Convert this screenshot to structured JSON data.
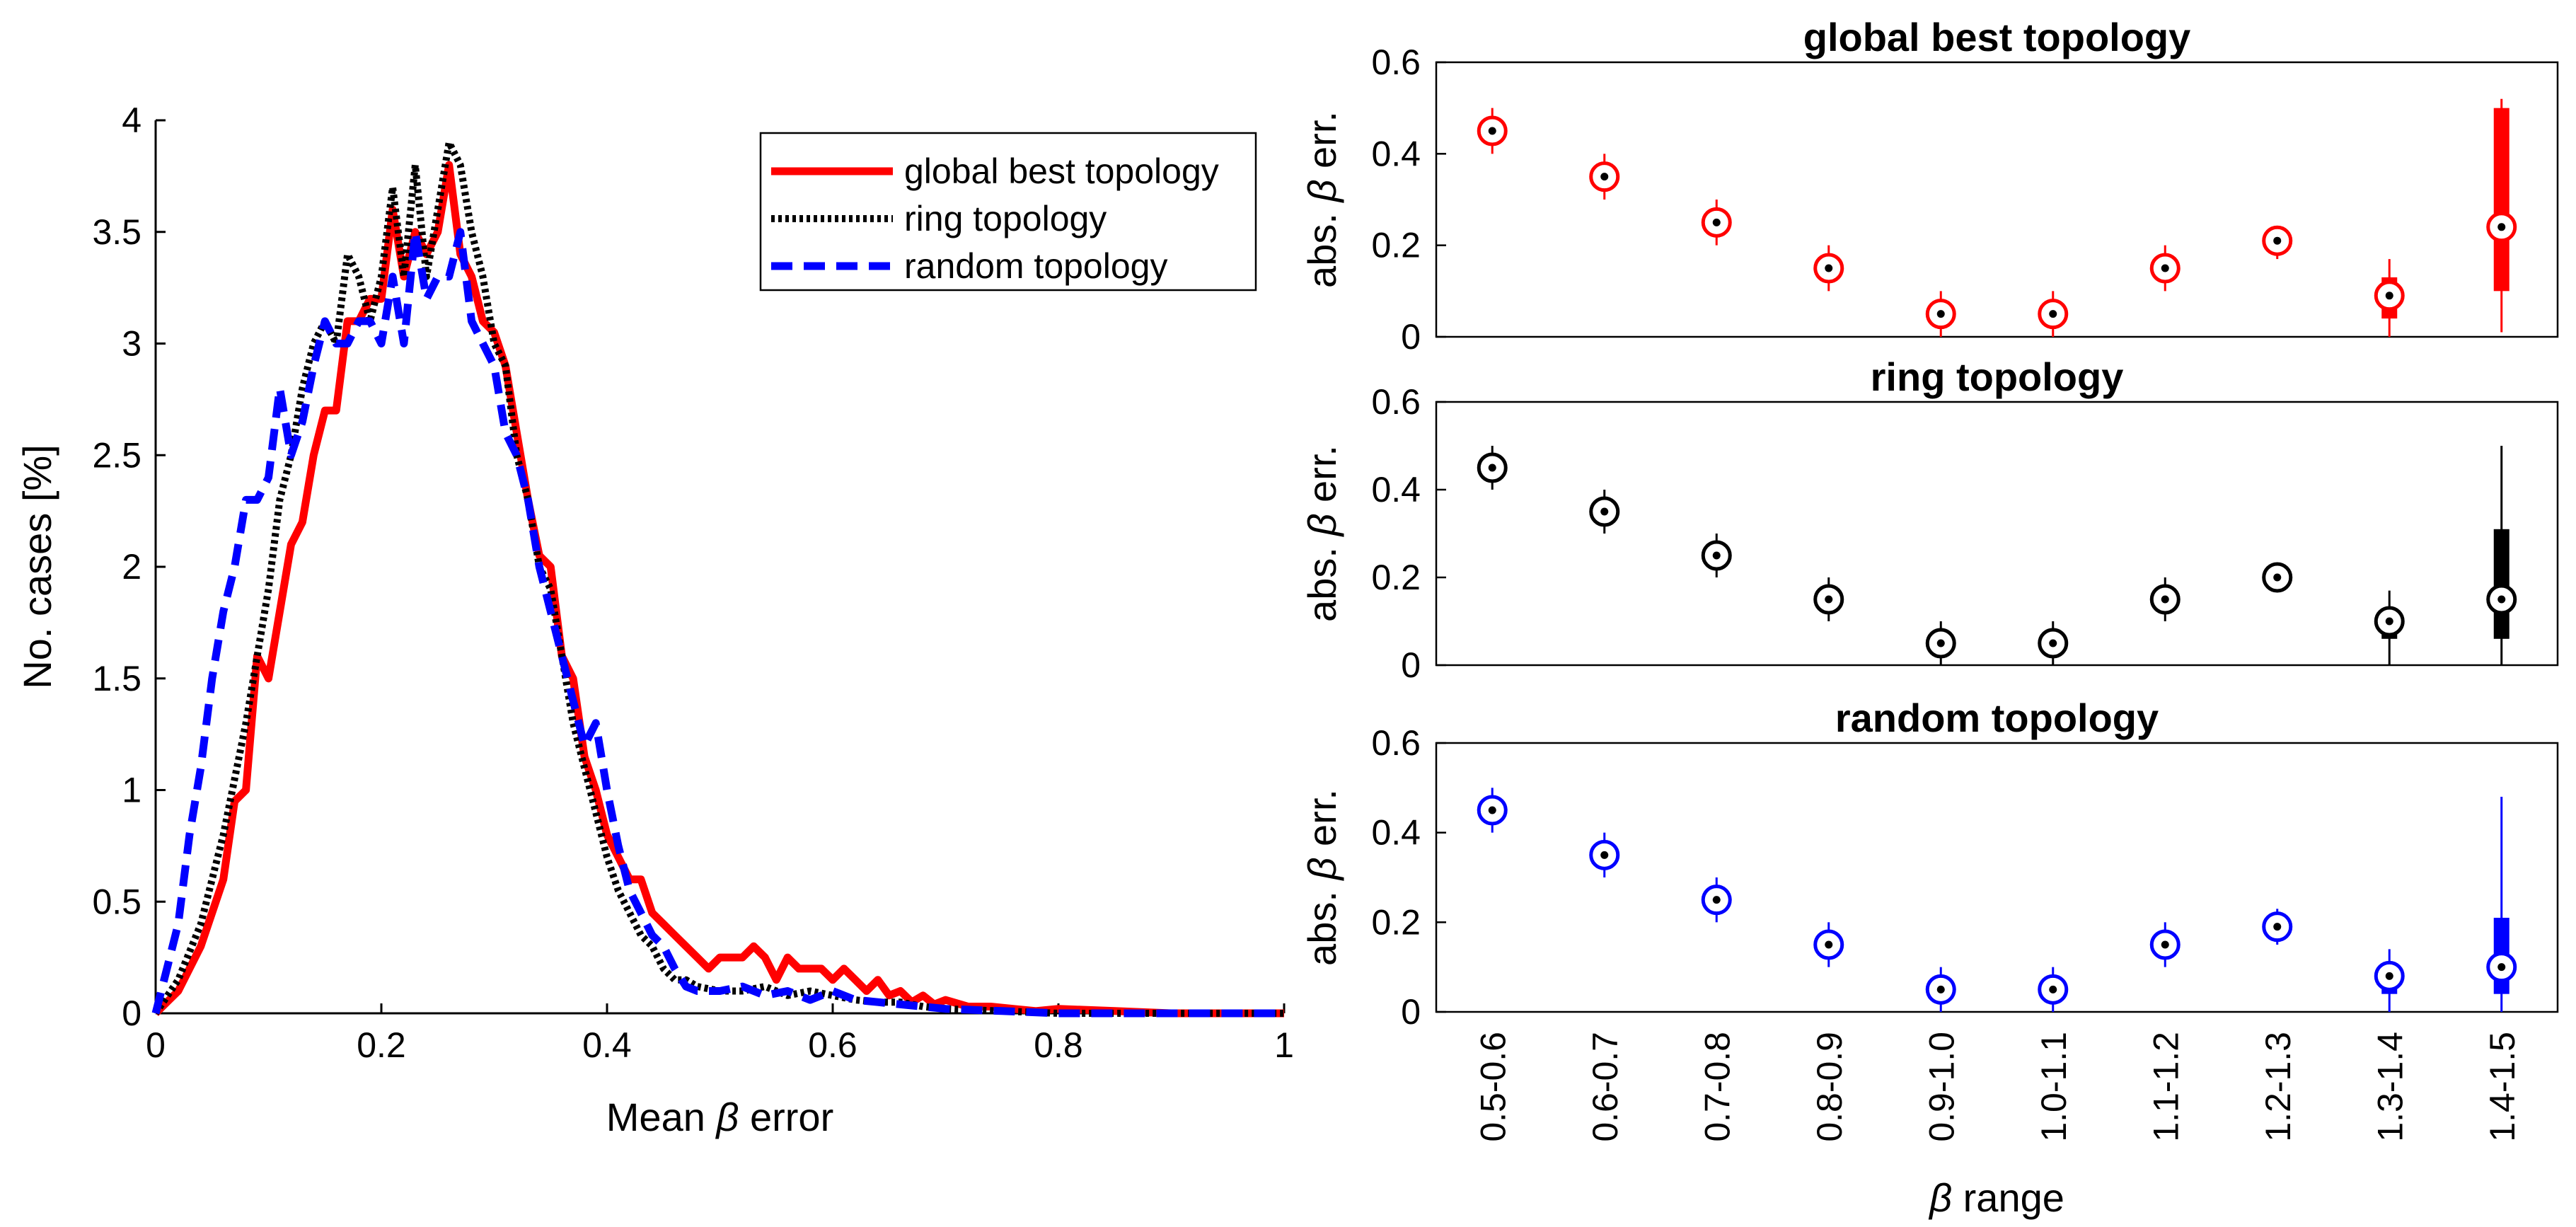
{
  "chart_data": [
    {
      "type": "line",
      "xlabel": "Mean β error",
      "ylabel": "No. cases [%]",
      "xlim": [
        0,
        1
      ],
      "ylim": [
        0,
        4
      ],
      "xticks": [
        0,
        0.2,
        0.4,
        0.6,
        0.8,
        1
      ],
      "xtick_labels": [
        "0",
        "0.2",
        "0.4",
        "0.6",
        "0.8",
        "1"
      ],
      "yticks": [
        0,
        0.5,
        1,
        1.5,
        2,
        2.5,
        3,
        3.5,
        4
      ],
      "ytick_labels": [
        "0",
        "0.5",
        "1",
        "1.5",
        "2",
        "2.5",
        "3",
        "3.5",
        "4"
      ],
      "legend_position": "top-right",
      "series": [
        {
          "name": "global best topology",
          "color": "#ff0000",
          "style": "solid",
          "x": [
            0,
            0.02,
            0.04,
            0.06,
            0.07,
            0.08,
            0.09,
            0.1,
            0.12,
            0.13,
            0.14,
            0.15,
            0.16,
            0.17,
            0.18,
            0.19,
            0.2,
            0.21,
            0.22,
            0.23,
            0.24,
            0.25,
            0.26,
            0.27,
            0.28,
            0.29,
            0.3,
            0.31,
            0.32,
            0.33,
            0.34,
            0.35,
            0.36,
            0.37,
            0.38,
            0.39,
            0.4,
            0.41,
            0.42,
            0.43,
            0.44,
            0.45,
            0.46,
            0.47,
            0.48,
            0.49,
            0.5,
            0.51,
            0.52,
            0.53,
            0.54,
            0.55,
            0.56,
            0.57,
            0.58,
            0.59,
            0.6,
            0.61,
            0.62,
            0.63,
            0.64,
            0.65,
            0.66,
            0.67,
            0.68,
            0.69,
            0.7,
            0.72,
            0.74,
            0.76,
            0.78,
            0.8,
            0.85,
            0.9,
            1.0
          ],
          "y": [
            0,
            0.1,
            0.3,
            0.6,
            0.95,
            1.0,
            1.6,
            1.5,
            2.1,
            2.2,
            2.5,
            2.7,
            2.7,
            3.1,
            3.1,
            3.2,
            3.2,
            3.6,
            3.3,
            3.5,
            3.4,
            3.5,
            3.8,
            3.4,
            3.3,
            3.1,
            3.05,
            2.9,
            2.6,
            2.3,
            2.05,
            2.0,
            1.6,
            1.5,
            1.15,
            1.0,
            0.8,
            0.7,
            0.6,
            0.6,
            0.45,
            0.4,
            0.35,
            0.3,
            0.25,
            0.2,
            0.25,
            0.25,
            0.25,
            0.3,
            0.25,
            0.15,
            0.25,
            0.2,
            0.2,
            0.2,
            0.15,
            0.2,
            0.15,
            0.1,
            0.15,
            0.08,
            0.1,
            0.05,
            0.08,
            0.04,
            0.06,
            0.03,
            0.03,
            0.02,
            0.01,
            0.02,
            0.01,
            0,
            0
          ]
        },
        {
          "name": "ring topology",
          "color": "#000000",
          "style": "dotted",
          "x": [
            0,
            0.02,
            0.04,
            0.06,
            0.08,
            0.09,
            0.1,
            0.11,
            0.12,
            0.13,
            0.14,
            0.15,
            0.16,
            0.17,
            0.18,
            0.19,
            0.2,
            0.21,
            0.22,
            0.23,
            0.24,
            0.25,
            0.26,
            0.27,
            0.28,
            0.29,
            0.3,
            0.31,
            0.32,
            0.33,
            0.34,
            0.35,
            0.36,
            0.37,
            0.38,
            0.39,
            0.4,
            0.41,
            0.42,
            0.43,
            0.44,
            0.45,
            0.46,
            0.47,
            0.48,
            0.5,
            0.52,
            0.54,
            0.56,
            0.58,
            0.6,
            0.62,
            0.64,
            0.66,
            0.68,
            0.7,
            0.75,
            0.8,
            1.0
          ],
          "y": [
            0,
            0.15,
            0.4,
            0.8,
            1.3,
            1.6,
            1.9,
            2.3,
            2.5,
            2.8,
            3.0,
            3.1,
            3.0,
            3.4,
            3.3,
            3.1,
            3.3,
            3.7,
            3.3,
            3.8,
            3.3,
            3.6,
            3.9,
            3.8,
            3.5,
            3.3,
            3.0,
            2.9,
            2.5,
            2.3,
            2.0,
            1.9,
            1.6,
            1.3,
            1.1,
            0.9,
            0.7,
            0.55,
            0.45,
            0.35,
            0.3,
            0.2,
            0.15,
            0.15,
            0.12,
            0.1,
            0.1,
            0.12,
            0.08,
            0.1,
            0.08,
            0.06,
            0.05,
            0.05,
            0.03,
            0.02,
            0.01,
            0,
            0
          ]
        },
        {
          "name": "random topology",
          "color": "#0000ff",
          "style": "dashed",
          "x": [
            0,
            0.02,
            0.03,
            0.04,
            0.05,
            0.06,
            0.07,
            0.08,
            0.09,
            0.1,
            0.11,
            0.12,
            0.13,
            0.14,
            0.15,
            0.16,
            0.17,
            0.18,
            0.19,
            0.2,
            0.21,
            0.22,
            0.23,
            0.24,
            0.25,
            0.26,
            0.27,
            0.28,
            0.29,
            0.3,
            0.31,
            0.32,
            0.33,
            0.34,
            0.35,
            0.36,
            0.37,
            0.38,
            0.39,
            0.4,
            0.41,
            0.42,
            0.43,
            0.44,
            0.45,
            0.46,
            0.47,
            0.48,
            0.5,
            0.52,
            0.54,
            0.56,
            0.58,
            0.6,
            0.62,
            0.64,
            0.66,
            0.68,
            0.7,
            0.75,
            0.8,
            1.0
          ],
          "y": [
            0,
            0.4,
            0.8,
            1.1,
            1.5,
            1.8,
            2.0,
            2.3,
            2.3,
            2.4,
            2.8,
            2.5,
            2.65,
            2.9,
            3.1,
            3.0,
            3.0,
            3.1,
            3.1,
            3.0,
            3.3,
            3.0,
            3.5,
            3.2,
            3.3,
            3.3,
            3.5,
            3.1,
            3.0,
            2.9,
            2.6,
            2.5,
            2.3,
            2.0,
            1.8,
            1.6,
            1.4,
            1.2,
            1.3,
            1.0,
            0.75,
            0.55,
            0.45,
            0.35,
            0.3,
            0.2,
            0.12,
            0.1,
            0.1,
            0.12,
            0.08,
            0.1,
            0.06,
            0.1,
            0.06,
            0.05,
            0.04,
            0.03,
            0.02,
            0.01,
            0,
            0
          ]
        }
      ]
    },
    {
      "type": "boxplot",
      "title": "global best topology",
      "color": "#ff0000",
      "ylabel": "abs. β err.",
      "ylim": [
        0,
        0.6
      ],
      "yticks": [
        0,
        0.2,
        0.4,
        0.6
      ],
      "ytick_labels": [
        "0",
        "0.2",
        "0.4",
        "0.6"
      ],
      "categories": [
        "0.5-0.6",
        "0.6-0.7",
        "0.7-0.8",
        "0.8-0.9",
        "0.9-1.0",
        "1.0-1.1",
        "1.1-1.2",
        "1.2-1.3",
        "1.3-1.4",
        "1.4-1.5"
      ],
      "stats": [
        {
          "median": 0.45,
          "q1": 0.45,
          "q3": 0.45,
          "whisker_low": 0.4,
          "whisker_high": 0.5
        },
        {
          "median": 0.35,
          "q1": 0.35,
          "q3": 0.35,
          "whisker_low": 0.3,
          "whisker_high": 0.4
        },
        {
          "median": 0.25,
          "q1": 0.25,
          "q3": 0.25,
          "whisker_low": 0.2,
          "whisker_high": 0.3
        },
        {
          "median": 0.15,
          "q1": 0.15,
          "q3": 0.15,
          "whisker_low": 0.1,
          "whisker_high": 0.2
        },
        {
          "median": 0.05,
          "q1": 0.05,
          "q3": 0.05,
          "whisker_low": 0.0,
          "whisker_high": 0.1
        },
        {
          "median": 0.05,
          "q1": 0.05,
          "q3": 0.05,
          "whisker_low": 0.0,
          "whisker_high": 0.1
        },
        {
          "median": 0.15,
          "q1": 0.15,
          "q3": 0.15,
          "whisker_low": 0.1,
          "whisker_high": 0.2
        },
        {
          "median": 0.21,
          "q1": 0.21,
          "q3": 0.21,
          "whisker_low": 0.17,
          "whisker_high": 0.23
        },
        {
          "median": 0.09,
          "q1": 0.04,
          "q3": 0.13,
          "whisker_low": 0.0,
          "whisker_high": 0.17
        },
        {
          "median": 0.24,
          "q1": 0.1,
          "q3": 0.5,
          "whisker_low": 0.01,
          "whisker_high": 0.52
        }
      ]
    },
    {
      "type": "boxplot",
      "title": "ring topology",
      "color": "#000000",
      "ylabel": "abs. β err.",
      "ylim": [
        0,
        0.6
      ],
      "yticks": [
        0,
        0.2,
        0.4,
        0.6
      ],
      "ytick_labels": [
        "0",
        "0.2",
        "0.4",
        "0.6"
      ],
      "categories": [
        "0.5-0.6",
        "0.6-0.7",
        "0.7-0.8",
        "0.8-0.9",
        "0.9-1.0",
        "1.0-1.1",
        "1.1-1.2",
        "1.2-1.3",
        "1.3-1.4",
        "1.4-1.5"
      ],
      "stats": [
        {
          "median": 0.45,
          "q1": 0.45,
          "q3": 0.45,
          "whisker_low": 0.4,
          "whisker_high": 0.5
        },
        {
          "median": 0.35,
          "q1": 0.35,
          "q3": 0.35,
          "whisker_low": 0.3,
          "whisker_high": 0.4
        },
        {
          "median": 0.25,
          "q1": 0.25,
          "q3": 0.25,
          "whisker_low": 0.2,
          "whisker_high": 0.3
        },
        {
          "median": 0.15,
          "q1": 0.15,
          "q3": 0.15,
          "whisker_low": 0.1,
          "whisker_high": 0.2
        },
        {
          "median": 0.05,
          "q1": 0.05,
          "q3": 0.05,
          "whisker_low": 0.0,
          "whisker_high": 0.1
        },
        {
          "median": 0.05,
          "q1": 0.05,
          "q3": 0.05,
          "whisker_low": 0.0,
          "whisker_high": 0.1
        },
        {
          "median": 0.15,
          "q1": 0.15,
          "q3": 0.15,
          "whisker_low": 0.1,
          "whisker_high": 0.2
        },
        {
          "median": 0.2,
          "q1": 0.2,
          "q3": 0.2,
          "whisker_low": 0.18,
          "whisker_high": 0.22
        },
        {
          "median": 0.1,
          "q1": 0.06,
          "q3": 0.13,
          "whisker_low": 0.0,
          "whisker_high": 0.17
        },
        {
          "median": 0.15,
          "q1": 0.06,
          "q3": 0.31,
          "whisker_low": 0.0,
          "whisker_high": 0.5
        }
      ]
    },
    {
      "type": "boxplot",
      "title": "random topology",
      "color": "#0000ff",
      "ylabel": "abs. β err.",
      "xlabel": "β range",
      "ylim": [
        0,
        0.6
      ],
      "yticks": [
        0,
        0.2,
        0.4,
        0.6
      ],
      "ytick_labels": [
        "0",
        "0.2",
        "0.4",
        "0.6"
      ],
      "categories": [
        "0.5-0.6",
        "0.6-0.7",
        "0.7-0.8",
        "0.8-0.9",
        "0.9-1.0",
        "1.0-1.1",
        "1.1-1.2",
        "1.2-1.3",
        "1.3-1.4",
        "1.4-1.5"
      ],
      "stats": [
        {
          "median": 0.45,
          "q1": 0.45,
          "q3": 0.45,
          "whisker_low": 0.4,
          "whisker_high": 0.5
        },
        {
          "median": 0.35,
          "q1": 0.35,
          "q3": 0.35,
          "whisker_low": 0.3,
          "whisker_high": 0.4
        },
        {
          "median": 0.25,
          "q1": 0.25,
          "q3": 0.25,
          "whisker_low": 0.2,
          "whisker_high": 0.3
        },
        {
          "median": 0.15,
          "q1": 0.15,
          "q3": 0.15,
          "whisker_low": 0.1,
          "whisker_high": 0.2
        },
        {
          "median": 0.05,
          "q1": 0.05,
          "q3": 0.05,
          "whisker_low": 0.0,
          "whisker_high": 0.1
        },
        {
          "median": 0.05,
          "q1": 0.05,
          "q3": 0.05,
          "whisker_low": 0.0,
          "whisker_high": 0.1
        },
        {
          "median": 0.15,
          "q1": 0.15,
          "q3": 0.15,
          "whisker_low": 0.1,
          "whisker_high": 0.2
        },
        {
          "median": 0.19,
          "q1": 0.19,
          "q3": 0.19,
          "whisker_low": 0.15,
          "whisker_high": 0.23
        },
        {
          "median": 0.08,
          "q1": 0.04,
          "q3": 0.1,
          "whisker_low": 0.0,
          "whisker_high": 0.14
        },
        {
          "median": 0.1,
          "q1": 0.04,
          "q3": 0.21,
          "whisker_low": 0.0,
          "whisker_high": 0.48
        }
      ]
    }
  ]
}
